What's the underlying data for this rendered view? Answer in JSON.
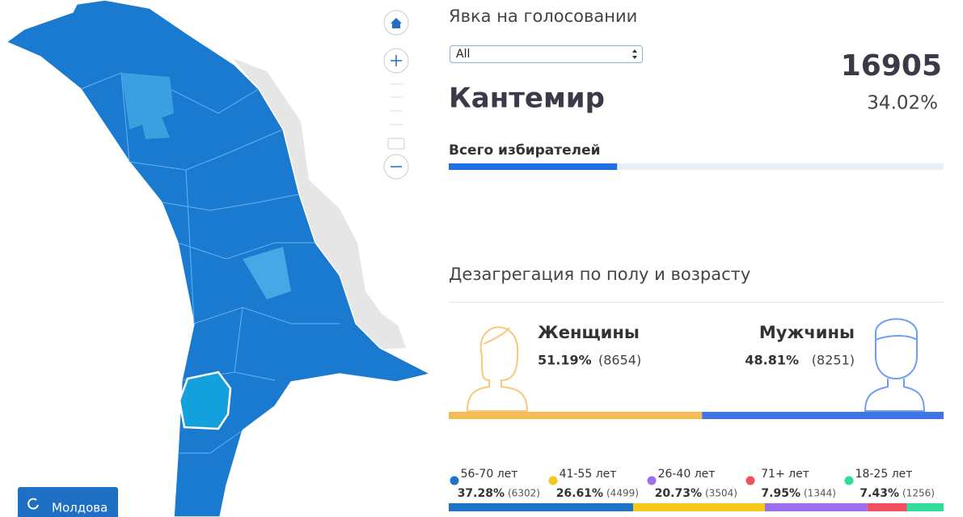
{
  "title": "Явка на голосовании",
  "filter": "All",
  "region": "Кантемир",
  "turnout": {
    "count": 16905,
    "percent": {
      "value": 34.02,
      "label": "34.02%"
    },
    "color": "#1f6fe5",
    "track_color": "#e8f0f8"
  },
  "total_voters_label": "Всего избирателей",
  "breakdown_title": "Дезагрегация по полу и возрасту",
  "gender": [
    {
      "name": "Женщины",
      "percent": {
        "value": 51.19,
        "label": "51.19%"
      },
      "count": {
        "value": 8654,
        "label": "(8654)"
      },
      "color": "#f6bb54"
    },
    {
      "name": "Мужчины",
      "percent": {
        "value": 48.81,
        "label": "48.81%"
      },
      "count": {
        "value": 8251,
        "label": "(8251)"
      },
      "color": "#3e76e8"
    }
  ],
  "age_groups": [
    {
      "name": "56-70 лет",
      "percent": {
        "value": 37.28,
        "label": "37.28%"
      },
      "count": {
        "value": 6302,
        "label": "(6302)"
      },
      "color": "#1e74c9"
    },
    {
      "name": "41-55 лет",
      "percent": {
        "value": 26.61,
        "label": "26.61%"
      },
      "count": {
        "value": 4499,
        "label": "(4499)"
      },
      "color": "#f7c81b"
    },
    {
      "name": "26-40 лет",
      "percent": {
        "value": 20.73,
        "label": "20.73%"
      },
      "count": {
        "value": 3504,
        "label": "(3504)"
      },
      "color": "#9c6ff0"
    },
    {
      "name": "71+ лет",
      "percent": {
        "value": 7.95,
        "label": "7.95%"
      },
      "count": {
        "value": 1344,
        "label": "(1344)"
      },
      "color": "#f2505c"
    },
    {
      "name": "18-25 лет",
      "percent": {
        "value": 7.43,
        "label": "7.43%"
      },
      "count": {
        "value": 1256,
        "label": "(1256)"
      },
      "color": "#32dd9c"
    }
  ],
  "map_button": "Молдова"
}
